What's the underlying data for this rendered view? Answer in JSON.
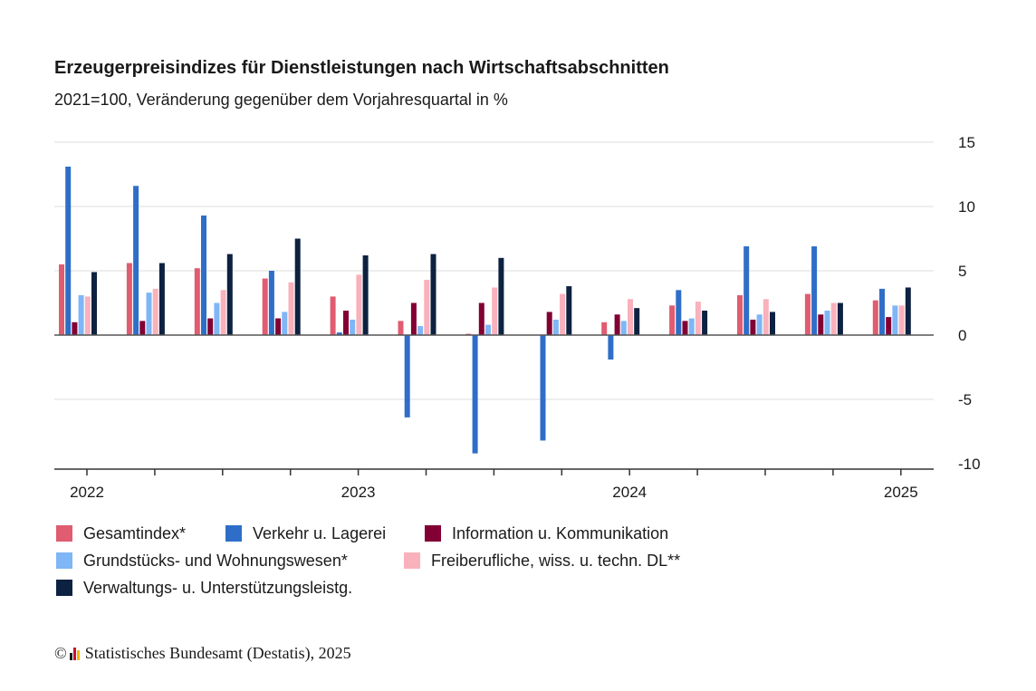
{
  "header": {
    "title": "Erzeugerpreisindizes für Dienstleistungen nach Wirtschaftsabschnitten",
    "subtitle": "2021=100, Veränderung gegenüber dem Vorjahresquartal in %"
  },
  "footer": {
    "copyright_symbol": "©",
    "text": "Statistisches Bundesamt (Destatis), 2025"
  },
  "chart_data": {
    "type": "bar",
    "title": "Erzeugerpreisindizes für Dienstleistungen nach Wirtschaftsabschnitten",
    "subtitle": "2021=100, Veränderung gegenüber dem Vorjahresquartal in %",
    "xlabel": "",
    "ylabel": "",
    "ylim": [
      -10,
      15
    ],
    "yticks": [
      15,
      10,
      5,
      0,
      -5,
      -10
    ],
    "year_labels": [
      {
        "label": "2022",
        "quarter_index": 0
      },
      {
        "label": "2023",
        "quarter_index": 4
      },
      {
        "label": "2024",
        "quarter_index": 8
      },
      {
        "label": "2025",
        "quarter_index": 12
      }
    ],
    "categories": [
      "2022 Q1",
      "2022 Q2",
      "2022 Q3",
      "2022 Q4",
      "2023 Q1",
      "2023 Q2",
      "2023 Q3",
      "2023 Q4",
      "2024 Q1",
      "2024 Q2",
      "2024 Q3",
      "2024 Q4",
      "2025 Q1"
    ],
    "grid": true,
    "legend_position": "bottom-left",
    "series": [
      {
        "name": "Gesamtindex*",
        "color": "#e05c71",
        "values": [
          5.5,
          5.6,
          5.2,
          4.4,
          3.0,
          1.1,
          0.1,
          0.0,
          1.0,
          2.3,
          3.1,
          3.2,
          2.7
        ]
      },
      {
        "name": "Verkehr u. Lagerei",
        "color": "#2f6ec8",
        "values": [
          13.1,
          11.6,
          9.3,
          5.0,
          0.2,
          -6.4,
          -9.2,
          -8.2,
          -1.9,
          3.5,
          6.9,
          6.9,
          3.6
        ]
      },
      {
        "name": "Information u. Kommunikation",
        "color": "#820033",
        "values": [
          1.0,
          1.1,
          1.3,
          1.3,
          1.9,
          2.5,
          2.5,
          1.8,
          1.6,
          1.1,
          1.2,
          1.6,
          1.4
        ]
      },
      {
        "name": "Grundstücks- und Wohnungswesen*",
        "color": "#7fb6f5",
        "values": [
          3.1,
          3.3,
          2.5,
          1.8,
          1.2,
          0.7,
          0.8,
          1.2,
          1.1,
          1.3,
          1.6,
          1.9,
          2.3
        ]
      },
      {
        "name": "Freiberufliche, wiss. u. techn. DL**",
        "color": "#f9b1bc",
        "values": [
          3.0,
          3.6,
          3.5,
          4.1,
          4.7,
          4.3,
          3.7,
          3.2,
          2.8,
          2.6,
          2.8,
          2.5,
          2.3
        ]
      },
      {
        "name": "Verwaltungs- u. Unterstützungsleistg.",
        "color": "#0d2140",
        "values": [
          4.9,
          5.6,
          6.3,
          7.5,
          6.2,
          6.3,
          6.0,
          3.8,
          2.1,
          1.9,
          1.8,
          2.5,
          3.7
        ]
      }
    ]
  }
}
